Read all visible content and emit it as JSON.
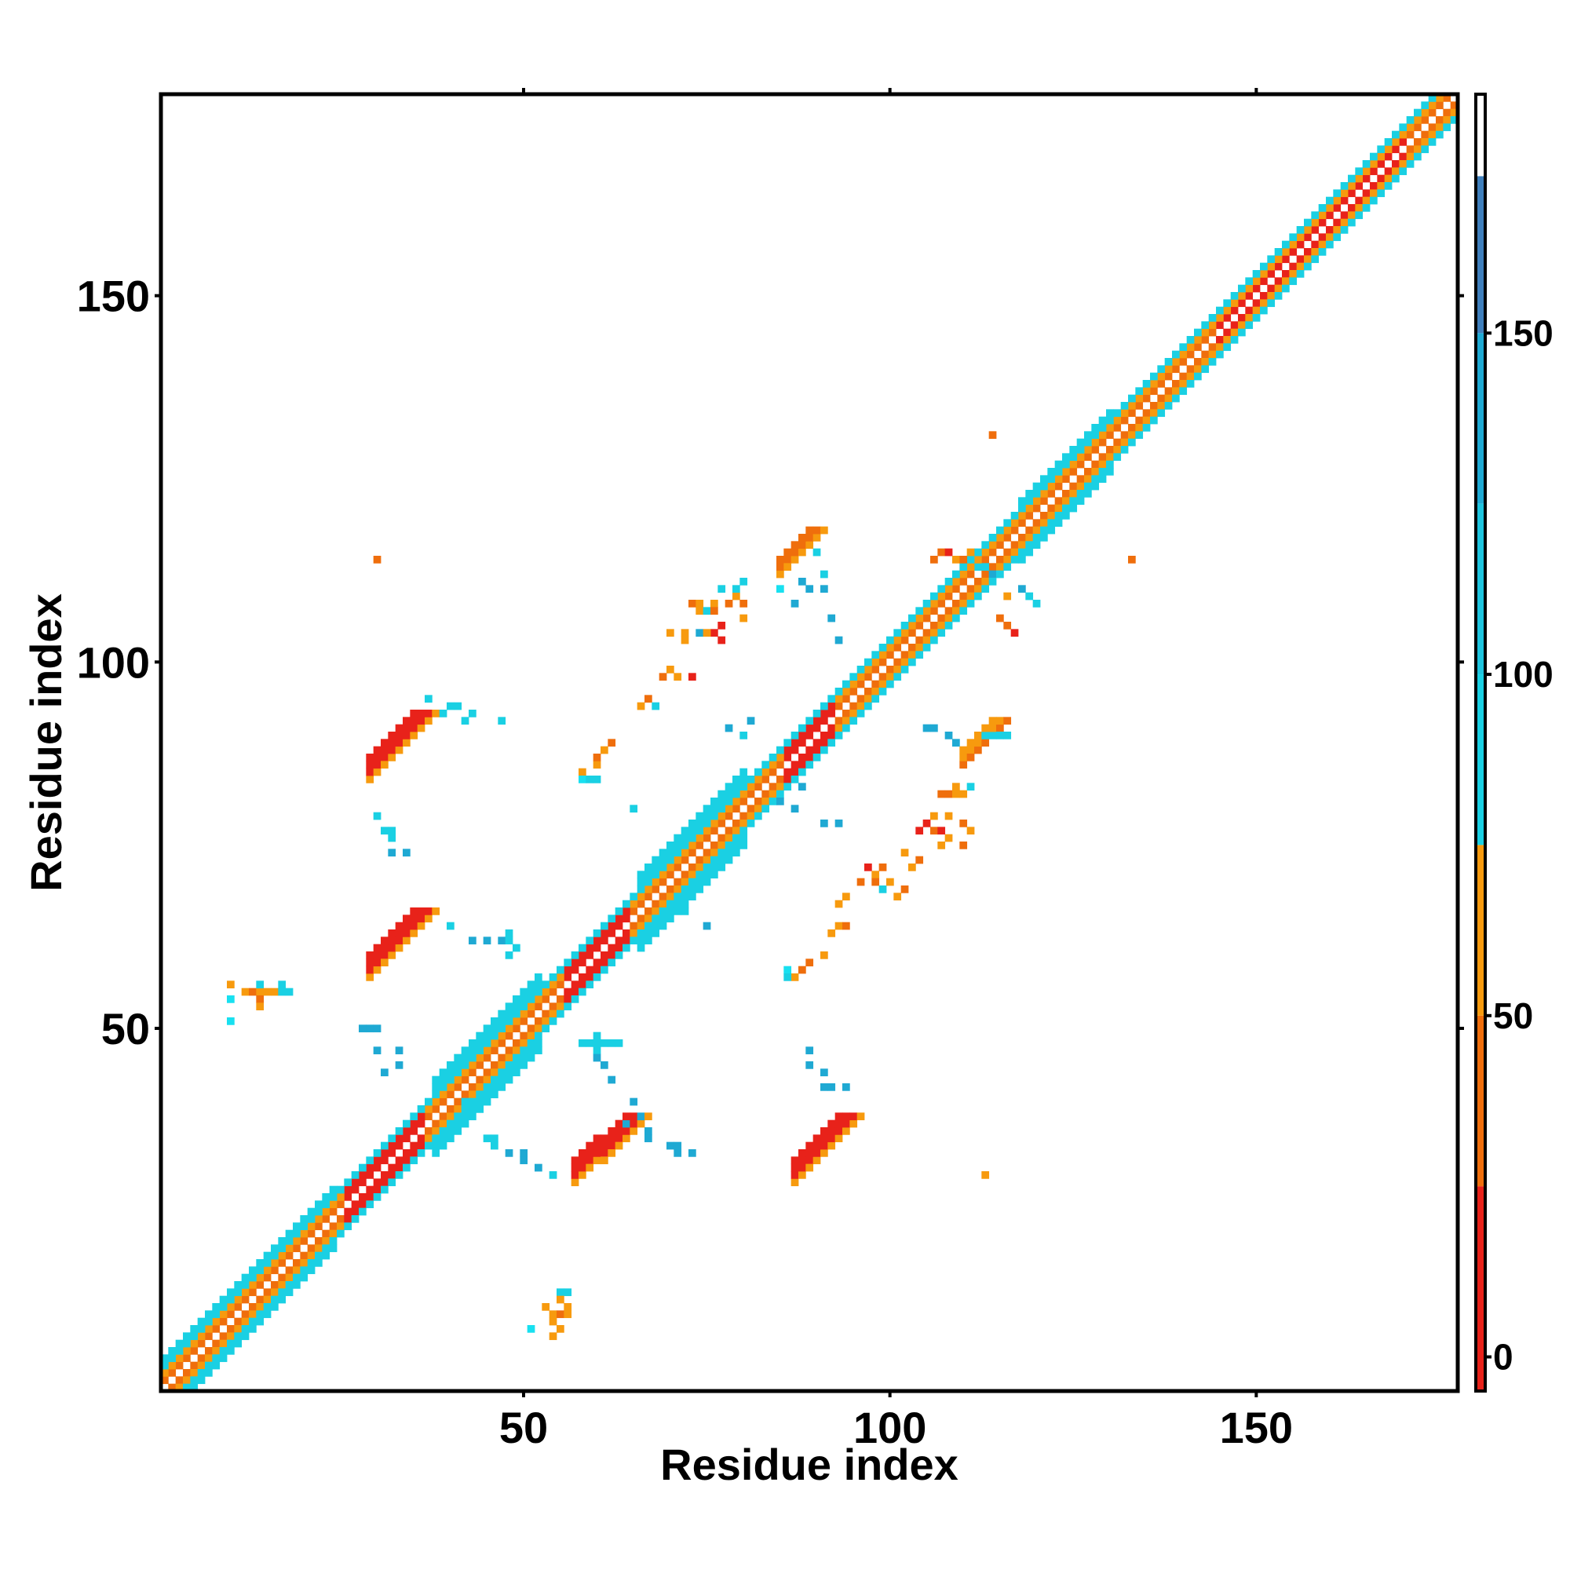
{
  "chart_data": {
    "type": "heatmap",
    "title": "",
    "xlabel": "Residue index",
    "ylabel": "Residue index",
    "xlim": [
      1,
      177
    ],
    "ylim": [
      1,
      177
    ],
    "x_ticks": [
      "50",
      "100",
      "150"
    ],
    "y_ticks": [
      "50",
      "100",
      "150"
    ],
    "colorbar": {
      "ticks": [
        "0",
        "50",
        "100",
        "150"
      ],
      "range": [
        -5,
        185
      ],
      "bands": [
        {
          "from": -5,
          "to": 25,
          "color": "#e8221a"
        },
        {
          "from": 25,
          "to": 50,
          "color": "#ef6e0c"
        },
        {
          "from": 50,
          "to": 75,
          "color": "#f79a0e"
        },
        {
          "from": 75,
          "to": 100,
          "color": "#1ad0e3"
        },
        {
          "from": 100,
          "to": 125,
          "color": "#1ec4de"
        },
        {
          "from": 125,
          "to": 150,
          "color": "#1fa9d3"
        },
        {
          "from": 150,
          "to": 173,
          "color": "#3f7fbc"
        },
        {
          "from": 173,
          "to": 185,
          "color": "#ffffff"
        }
      ]
    },
    "palette": {
      "red": "#e8221a",
      "orange_red": "#ef6e0c",
      "orange": "#f79a0e",
      "cyan": "#1ad0e3",
      "light_cyan": "#18e0f0",
      "sky": "#1fa9d3",
      "blue": "#3f7fbc"
    },
    "grid": false,
    "diagonal_bands": [
      {
        "x_range": [
          1,
          177
        ],
        "offsets": [
          1,
          -1
        ],
        "color": "orange_red"
      },
      {
        "x_range": [
          1,
          177
        ],
        "offsets": [
          2,
          -2
        ],
        "color": "orange"
      },
      {
        "x_range": [
          1,
          177
        ],
        "offsets": [
          3,
          -3
        ],
        "color": "cyan"
      },
      {
        "x_range": [
          1,
          24
        ],
        "offsets": [
          4,
          -4
        ],
        "color": "cyan"
      },
      {
        "x_range": [
          38,
          52
        ],
        "offsets": [
          4,
          -4,
          5,
          -5
        ],
        "color": "cyan"
      },
      {
        "x_range": [
          66,
          80
        ],
        "offsets": [
          4,
          -4,
          5,
          -5
        ],
        "color": "cyan"
      },
      {
        "x_range": [
          118,
          130
        ],
        "offsets": [
          4,
          -4
        ],
        "color": "cyan"
      },
      {
        "x_range": [
          26,
          36
        ],
        "offsets": [
          1,
          -1,
          2,
          -2
        ],
        "color": "red"
      },
      {
        "x_range": [
          56,
          64
        ],
        "offsets": [
          1,
          -1,
          2,
          -2
        ],
        "color": "red"
      },
      {
        "x_range": [
          86,
          92
        ],
        "offsets": [
          1,
          -1,
          2,
          -2
        ],
        "color": "red"
      },
      {
        "x_range": [
          145,
          170
        ],
        "offsets": [
          1,
          -1
        ],
        "color": "red"
      }
    ],
    "antiparallel_strands": [
      {
        "start": [
          29,
          87
        ],
        "end": [
          35,
          93
        ],
        "width": 3,
        "color": "red",
        "edge_color": "orange"
      },
      {
        "start": [
          29,
          60
        ],
        "end": [
          35,
          66
        ],
        "width": 3,
        "color": "red",
        "edge_color": "orange"
      },
      {
        "start": [
          57,
          32
        ],
        "end": [
          64,
          38
        ],
        "width": 3,
        "color": "red",
        "edge_color": "orange"
      },
      {
        "start": [
          87,
          32
        ],
        "end": [
          93,
          38
        ],
        "width": 3,
        "color": "red",
        "edge_color": "orange"
      },
      {
        "start": [
          85,
          114
        ],
        "end": [
          89,
          118
        ],
        "width": 2,
        "color": "orange_red",
        "edge_color": "orange"
      },
      {
        "start": [
          110,
          88
        ],
        "end": [
          114,
          92
        ],
        "width": 2,
        "color": "orange",
        "edge_color": "orange_red"
      }
    ],
    "scattered_contacts": [
      [
        30,
        114,
        "orange_red"
      ],
      [
        114,
        131,
        "orange_red"
      ],
      [
        133,
        114,
        "orange_red"
      ],
      [
        113,
        30,
        "orange"
      ],
      [
        10,
        54,
        "light_cyan"
      ],
      [
        10,
        56,
        "orange"
      ],
      [
        12,
        55,
        "orange"
      ],
      [
        13,
        55,
        "orange_red"
      ],
      [
        14,
        55,
        "orange"
      ],
      [
        14,
        54,
        "orange_red"
      ],
      [
        14,
        53,
        "orange"
      ],
      [
        14,
        56,
        "cyan"
      ],
      [
        15,
        55,
        "orange"
      ],
      [
        16,
        55,
        "orange"
      ],
      [
        17,
        55,
        "cyan"
      ],
      [
        18,
        55,
        "cyan"
      ],
      [
        17,
        56,
        "cyan"
      ],
      [
        10,
        51,
        "light_cyan"
      ],
      [
        55,
        14,
        "cyan"
      ],
      [
        56,
        14,
        "cyan"
      ],
      [
        55,
        13,
        "orange"
      ],
      [
        53,
        12,
        "orange"
      ],
      [
        54,
        11,
        "orange"
      ],
      [
        55,
        11,
        "orange_red"
      ],
      [
        56,
        11,
        "orange"
      ],
      [
        56,
        12,
        "orange"
      ],
      [
        54,
        10,
        "orange"
      ],
      [
        55,
        9,
        "orange"
      ],
      [
        51,
        9,
        "light_cyan"
      ],
      [
        54,
        8,
        "orange"
      ],
      [
        37,
        95,
        "cyan"
      ],
      [
        39,
        93,
        "cyan"
      ],
      [
        40,
        94,
        "cyan"
      ],
      [
        41,
        94,
        "cyan"
      ],
      [
        42,
        92,
        "cyan"
      ],
      [
        43,
        93,
        "cyan"
      ],
      [
        47,
        92,
        "cyan"
      ],
      [
        30,
        79,
        "cyan"
      ],
      [
        31,
        77,
        "cyan"
      ],
      [
        32,
        77,
        "cyan"
      ],
      [
        32,
        76,
        "cyan"
      ],
      [
        32,
        74,
        "sky"
      ],
      [
        34,
        74,
        "sky"
      ],
      [
        28,
        50,
        "sky"
      ],
      [
        29,
        50,
        "sky"
      ],
      [
        30,
        50,
        "sky"
      ],
      [
        30,
        47,
        "sky"
      ],
      [
        33,
        47,
        "sky"
      ],
      [
        31,
        44,
        "sky"
      ],
      [
        33,
        45,
        "sky"
      ],
      [
        40,
        64,
        "cyan"
      ],
      [
        43,
        62,
        "sky"
      ],
      [
        45,
        62,
        "sky"
      ],
      [
        47,
        62,
        "sky"
      ],
      [
        48,
        60,
        "cyan"
      ],
      [
        48,
        62,
        "cyan"
      ],
      [
        49,
        61,
        "cyan"
      ],
      [
        48,
        63,
        "cyan"
      ],
      [
        42,
        40,
        "cyan"
      ],
      [
        45,
        35,
        "cyan"
      ],
      [
        46,
        35,
        "cyan"
      ],
      [
        46,
        34,
        "cyan"
      ],
      [
        48,
        33,
        "sky"
      ],
      [
        50,
        33,
        "sky"
      ],
      [
        50,
        32,
        "sky"
      ],
      [
        52,
        31,
        "sky"
      ],
      [
        54,
        30,
        "cyan"
      ],
      [
        58,
        48,
        "cyan"
      ],
      [
        59,
        48,
        "cyan"
      ],
      [
        60,
        48,
        "cyan"
      ],
      [
        61,
        48,
        "cyan"
      ],
      [
        60,
        47,
        "cyan"
      ],
      [
        60,
        49,
        "cyan"
      ],
      [
        62,
        48,
        "cyan"
      ],
      [
        63,
        48,
        "cyan"
      ],
      [
        60,
        46,
        "sky"
      ],
      [
        61,
        45,
        "sky"
      ],
      [
        62,
        43,
        "sky"
      ],
      [
        67,
        36,
        "sky"
      ],
      [
        67,
        35,
        "sky"
      ],
      [
        70,
        34,
        "sky"
      ],
      [
        71,
        34,
        "sky"
      ],
      [
        71,
        33,
        "sky"
      ],
      [
        73,
        33,
        "sky"
      ],
      [
        65,
        40,
        "sky"
      ],
      [
        66,
        38,
        "sky"
      ],
      [
        64,
        37,
        "sky"
      ],
      [
        89,
        47,
        "sky"
      ],
      [
        89,
        45,
        "sky"
      ],
      [
        91,
        44,
        "sky"
      ],
      [
        91,
        42,
        "sky"
      ],
      [
        92,
        42,
        "sky"
      ],
      [
        94,
        42,
        "sky"
      ],
      [
        58,
        85,
        "orange"
      ],
      [
        60,
        86,
        "orange"
      ],
      [
        60,
        87,
        "orange_red"
      ],
      [
        61,
        88,
        "orange"
      ],
      [
        62,
        89,
        "orange_red"
      ],
      [
        58,
        84,
        "light_cyan"
      ],
      [
        59,
        84,
        "cyan"
      ],
      [
        60,
        84,
        "cyan"
      ],
      [
        65,
        80,
        "cyan"
      ],
      [
        70,
        66,
        "cyan"
      ],
      [
        72,
        66,
        "cyan"
      ],
      [
        75,
        64,
        "sky"
      ],
      [
        66,
        94,
        "orange"
      ],
      [
        67,
        95,
        "orange_red"
      ],
      [
        68,
        94,
        "cyan"
      ],
      [
        69,
        98,
        "orange_red"
      ],
      [
        70,
        99,
        "orange"
      ],
      [
        71,
        98,
        "orange"
      ],
      [
        73,
        98,
        "red"
      ],
      [
        70,
        104,
        "orange"
      ],
      [
        72,
        103,
        "orange"
      ],
      [
        73,
        108,
        "orange_red"
      ],
      [
        74,
        108,
        "orange"
      ],
      [
        74,
        107,
        "orange"
      ],
      [
        75,
        107,
        "cyan"
      ],
      [
        76,
        108,
        "orange"
      ],
      [
        76,
        107,
        "orange_red"
      ],
      [
        77,
        105,
        "red"
      ],
      [
        77,
        110,
        "cyan"
      ],
      [
        78,
        108,
        "orange_red"
      ],
      [
        79,
        109,
        "orange"
      ],
      [
        79,
        110,
        "cyan"
      ],
      [
        80,
        111,
        "cyan"
      ],
      [
        80,
        108,
        "orange_red"
      ],
      [
        80,
        106,
        "orange"
      ],
      [
        72,
        104,
        "orange"
      ],
      [
        76,
        104,
        "red"
      ],
      [
        77,
        103,
        "red"
      ],
      [
        74,
        104,
        "sky"
      ],
      [
        75,
        104,
        "orange"
      ],
      [
        85,
        110,
        "light_cyan"
      ],
      [
        90,
        115,
        "cyan"
      ],
      [
        91,
        112,
        "cyan"
      ],
      [
        89,
        110,
        "sky"
      ],
      [
        91,
        110,
        "sky"
      ],
      [
        93,
        103,
        "sky"
      ],
      [
        92,
        106,
        "sky"
      ],
      [
        87,
        108,
        "sky"
      ],
      [
        88,
        111,
        "sky"
      ],
      [
        78,
        91,
        "sky"
      ],
      [
        80,
        90,
        "cyan"
      ],
      [
        81,
        92,
        "sky"
      ],
      [
        88,
        83,
        "sky"
      ],
      [
        85,
        81,
        "sky"
      ],
      [
        87,
        80,
        "sky"
      ],
      [
        91,
        78,
        "sky"
      ],
      [
        93,
        78,
        "sky"
      ],
      [
        97,
        72,
        "red"
      ],
      [
        96,
        70,
        "orange_red"
      ],
      [
        98,
        71,
        "orange"
      ],
      [
        98,
        70,
        "orange_red"
      ],
      [
        99,
        69,
        "cyan"
      ],
      [
        99,
        72,
        "orange_red"
      ],
      [
        100,
        70,
        "orange"
      ],
      [
        101,
        68,
        "orange"
      ],
      [
        102,
        69,
        "orange_red"
      ],
      [
        102,
        74,
        "orange"
      ],
      [
        103,
        72,
        "orange"
      ],
      [
        104,
        73,
        "orange_red"
      ],
      [
        104,
        77,
        "red"
      ],
      [
        105,
        78,
        "red"
      ],
      [
        106,
        77,
        "orange_red"
      ],
      [
        106,
        79,
        "orange"
      ],
      [
        107,
        75,
        "orange"
      ],
      [
        107,
        82,
        "orange_red"
      ],
      [
        108,
        82,
        "orange_red"
      ],
      [
        109,
        83,
        "orange"
      ],
      [
        109,
        82,
        "orange"
      ],
      [
        110,
        82,
        "orange"
      ],
      [
        111,
        83,
        "cyan"
      ],
      [
        108,
        79,
        "orange"
      ],
      [
        108,
        76,
        "orange"
      ],
      [
        107,
        77,
        "red"
      ],
      [
        110,
        78,
        "orange_red"
      ],
      [
        110,
        75,
        "orange_red"
      ],
      [
        111,
        77,
        "orange"
      ],
      [
        94,
        68,
        "orange"
      ],
      [
        93,
        67,
        "orange"
      ],
      [
        93,
        64,
        "orange"
      ],
      [
        94,
        64,
        "orange_red"
      ],
      [
        92,
        63,
        "orange"
      ],
      [
        91,
        60,
        "orange"
      ],
      [
        89,
        59,
        "orange_red"
      ],
      [
        88,
        58,
        "orange_red"
      ],
      [
        87,
        57,
        "orange"
      ],
      [
        86,
        58,
        "light_cyan"
      ],
      [
        86,
        57,
        "cyan"
      ],
      [
        113,
        90,
        "cyan"
      ],
      [
        114,
        90,
        "cyan"
      ],
      [
        115,
        90,
        "cyan"
      ],
      [
        116,
        90,
        "cyan"
      ],
      [
        105,
        91,
        "sky"
      ],
      [
        106,
        91,
        "sky"
      ],
      [
        108,
        90,
        "sky"
      ],
      [
        109,
        89,
        "sky"
      ],
      [
        106,
        114,
        "orange_red"
      ],
      [
        107,
        115,
        "orange_red"
      ],
      [
        108,
        115,
        "red"
      ],
      [
        109,
        114,
        "orange"
      ],
      [
        110,
        114,
        "orange_red"
      ],
      [
        111,
        115,
        "orange"
      ],
      [
        112,
        113,
        "cyan"
      ],
      [
        113,
        113,
        "cyan"
      ],
      [
        114,
        112,
        "sky"
      ],
      [
        116,
        109,
        "orange"
      ],
      [
        115,
        106,
        "orange_red"
      ],
      [
        116,
        105,
        "orange_red"
      ],
      [
        117,
        104,
        "red"
      ],
      [
        118,
        110,
        "sky"
      ],
      [
        119,
        109,
        "cyan"
      ],
      [
        120,
        108,
        "cyan"
      ]
    ]
  }
}
